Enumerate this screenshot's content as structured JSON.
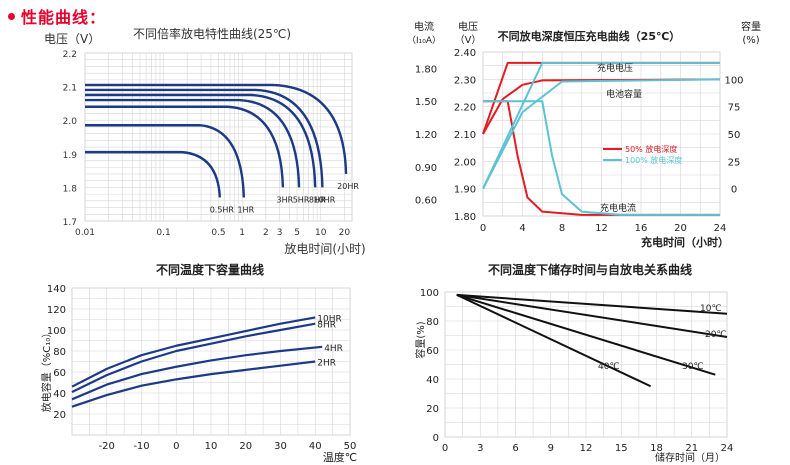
{
  "header": {
    "title": "性能曲线："
  },
  "colors": {
    "accent": "#e8002a",
    "navy": "#1d3a86",
    "red": "#e31b23",
    "cyan": "#5cc2d6",
    "grid": "#d6d6d6"
  },
  "chart_data": [
    {
      "type": "line",
      "title": "不同倍率放电特性曲线(25℃)",
      "ylabel": "电压（V）",
      "xlabel": "放电时间(小时)",
      "xscale": "log",
      "xlim": [
        0.01,
        25
      ],
      "ylim": [
        1.7,
        2.2
      ],
      "xticks": [
        0.01,
        0.1,
        0.5,
        1,
        2,
        3,
        5,
        10,
        20
      ],
      "xtick_labels": [
        "0.01",
        "0.1",
        "0.5",
        "1",
        "2",
        "3",
        "5",
        "10",
        "20"
      ],
      "yticks": [
        1.7,
        1.8,
        1.9,
        2.0,
        2.1,
        2.2
      ],
      "ytick_labels": [
        "1.7",
        "1.8",
        "1.9",
        "2.0",
        "2.1",
        "2.2"
      ],
      "series": [
        {
          "name": "0.5HR",
          "plateau": 1.905,
          "end": 0.52,
          "end_v": 1.77
        },
        {
          "name": "1HR",
          "plateau": 1.985,
          "end": 1.05,
          "end_v": 1.77
        },
        {
          "name": "3HR",
          "plateau": 2.04,
          "end": 3.3,
          "end_v": 1.8
        },
        {
          "name": "5HR",
          "plateau": 2.06,
          "end": 5.3,
          "end_v": 1.8
        },
        {
          "name": "8HR",
          "plateau": 2.075,
          "end": 8.5,
          "end_v": 1.8
        },
        {
          "name": "10HR",
          "plateau": 2.09,
          "end": 10.5,
          "end_v": 1.8
        },
        {
          "name": "20HR",
          "plateau": 2.105,
          "end": 21,
          "end_v": 1.84
        }
      ]
    },
    {
      "type": "line",
      "title": "不同放电深度恒压充电曲线（25℃）",
      "xlabel": "充电时间（小时）",
      "xlim": [
        0,
        24
      ],
      "xticks": [
        0,
        4,
        8,
        12,
        16,
        20,
        24
      ],
      "left_axis_1": {
        "label": "电流",
        "unit": "（I₁₀A）",
        "ticks": [
          "0.60",
          "0.90",
          "1.20",
          "1.50",
          "1.80"
        ],
        "range": [
          0.45,
          1.95
        ]
      },
      "left_axis_2": {
        "label": "电压",
        "unit": "（V）",
        "ticks": [
          "1.80",
          "1.90",
          "2.00",
          "2.10",
          "2.20",
          "2.30",
          "2.40"
        ],
        "range": [
          1.8,
          2.4
        ]
      },
      "right_axis": {
        "label": "容量",
        "unit": "(%)",
        "ticks": [
          "0",
          "25",
          "50",
          "75",
          "100"
        ],
        "range": [
          -25,
          125
        ]
      },
      "annotations": [
        "充电电压",
        "电池容量",
        "充电电流"
      ],
      "legend": [
        {
          "name": "50%  放电深度",
          "color": "#e31b23"
        },
        {
          "name": "100% 放电深度",
          "color": "#5cc2d6"
        }
      ],
      "series": [
        {
          "name": "50%  放电深度",
          "axis": "voltage",
          "x": [
            0,
            2.5,
            24
          ],
          "y": [
            2.1,
            2.36,
            2.36
          ]
        },
        {
          "name": "50%  放电深度",
          "axis": "capacity",
          "x": [
            0,
            2,
            4,
            6,
            24
          ],
          "y": [
            50,
            82,
            95,
            99,
            100
          ]
        },
        {
          "name": "50%  放电深度",
          "axis": "current",
          "x": [
            0,
            2.5,
            3.5,
            4.5,
            6,
            10,
            24
          ],
          "y": [
            1.5,
            1.5,
            1.0,
            0.62,
            0.49,
            0.46,
            0.46
          ]
        },
        {
          "name": "100% 放电深度",
          "axis": "voltage",
          "x": [
            0,
            6,
            24
          ],
          "y": [
            1.9,
            2.36,
            2.36
          ]
        },
        {
          "name": "100% 放电深度",
          "axis": "capacity",
          "x": [
            0,
            4,
            8,
            24
          ],
          "y": [
            0,
            70,
            98,
            100
          ]
        },
        {
          "name": "100% 放电深度",
          "axis": "current",
          "x": [
            0,
            6,
            7,
            8,
            10,
            14,
            24
          ],
          "y": [
            1.5,
            1.5,
            1.0,
            0.65,
            0.49,
            0.46,
            0.46
          ]
        }
      ]
    },
    {
      "type": "line",
      "title": "不同温度下容量曲线",
      "xlabel": "温度℃",
      "ylabel": "放电容量（%C₁₀）",
      "xlim": [
        -30,
        50
      ],
      "ylim": [
        0,
        140
      ],
      "xticks": [
        -20,
        -10,
        0,
        10,
        20,
        30,
        40,
        50
      ],
      "yticks": [
        20,
        40,
        60,
        80,
        100,
        120,
        140
      ],
      "series": [
        {
          "name": "10HR",
          "x": [
            -30,
            -20,
            -10,
            0,
            10,
            20,
            30,
            40
          ],
          "y": [
            46,
            63,
            76,
            85,
            92,
            99,
            106,
            112
          ]
        },
        {
          "name": "8HR",
          "x": [
            -30,
            -20,
            -10,
            0,
            10,
            20,
            30,
            40
          ],
          "y": [
            41,
            57,
            70,
            80,
            87,
            94,
            100,
            106
          ]
        },
        {
          "name": "4HR",
          "x": [
            -30,
            -20,
            -10,
            0,
            10,
            20,
            30,
            42
          ],
          "y": [
            34,
            48,
            58,
            65,
            71,
            76,
            80,
            84
          ]
        },
        {
          "name": "2HR",
          "x": [
            -30,
            -20,
            -10,
            0,
            10,
            20,
            30,
            40
          ],
          "y": [
            27,
            38,
            47,
            53,
            58,
            62,
            66,
            70
          ]
        }
      ]
    },
    {
      "type": "line",
      "title": "不同温度下储存时间与自放电关系曲线",
      "xlabel": "储存时间（月）",
      "ylabel": "容量(%)",
      "xlim": [
        0,
        24
      ],
      "ylim": [
        0,
        100
      ],
      "xticks": [
        0,
        3,
        6,
        9,
        12,
        15,
        18,
        21,
        24
      ],
      "yticks": [
        0,
        20,
        40,
        60,
        80,
        100
      ],
      "series": [
        {
          "name": "10℃",
          "x": [
            1,
            24
          ],
          "y": [
            98,
            85
          ]
        },
        {
          "name": "20℃",
          "x": [
            1,
            24
          ],
          "y": [
            98,
            69
          ]
        },
        {
          "name": "30℃",
          "x": [
            1,
            23
          ],
          "y": [
            98,
            43
          ]
        },
        {
          "name": "40℃",
          "x": [
            1,
            17.5
          ],
          "y": [
            98,
            35
          ]
        }
      ]
    }
  ]
}
